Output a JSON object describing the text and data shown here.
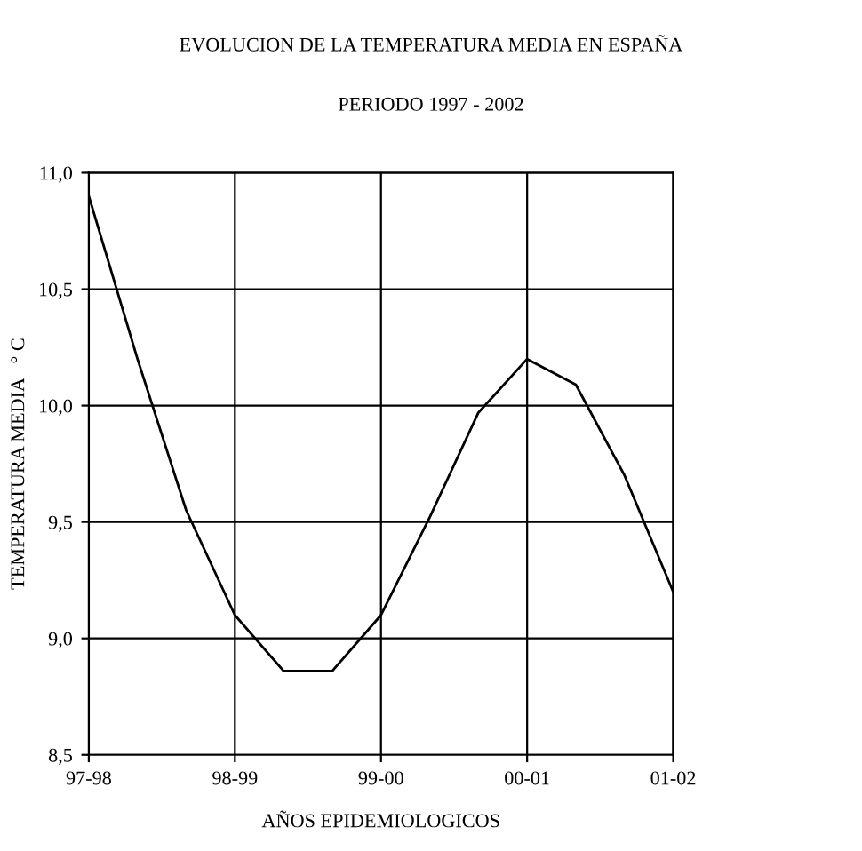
{
  "chart_data": {
    "type": "line",
    "title": "EVOLUCION DE LA TEMPERATURA MEDIA EN ESPAÑA",
    "subtitle": "PERIODO 1997 - 2002",
    "xlabel": "AÑOS EPIDEMIOLOGICOS",
    "ylabel": "TEMPERATURA MEDIA   ° C",
    "categories": [
      "97-98",
      null,
      null,
      "98-99",
      null,
      null,
      "99-00",
      null,
      null,
      "00-01",
      null,
      null,
      "01-02"
    ],
    "series": [
      {
        "color": "#000000",
        "values": [
          10.9,
          10.2,
          9.55,
          9.1,
          8.86,
          8.86,
          9.1,
          9.52,
          9.97,
          10.2,
          10.09,
          9.7,
          9.2
        ]
      }
    ],
    "ylim": [
      8.5,
      11
    ],
    "yticks": [
      {
        "value": 8.5,
        "label": "8,5"
      },
      {
        "value": 9,
        "label": "9,0"
      },
      {
        "value": 9.5,
        "label": "9,5"
      },
      {
        "value": 10,
        "label": "10,0"
      },
      {
        "value": 10.5,
        "label": "10,5"
      },
      {
        "value": 11,
        "label": "11,0"
      }
    ],
    "grid": true,
    "line_style": "solid",
    "marker": "none"
  }
}
